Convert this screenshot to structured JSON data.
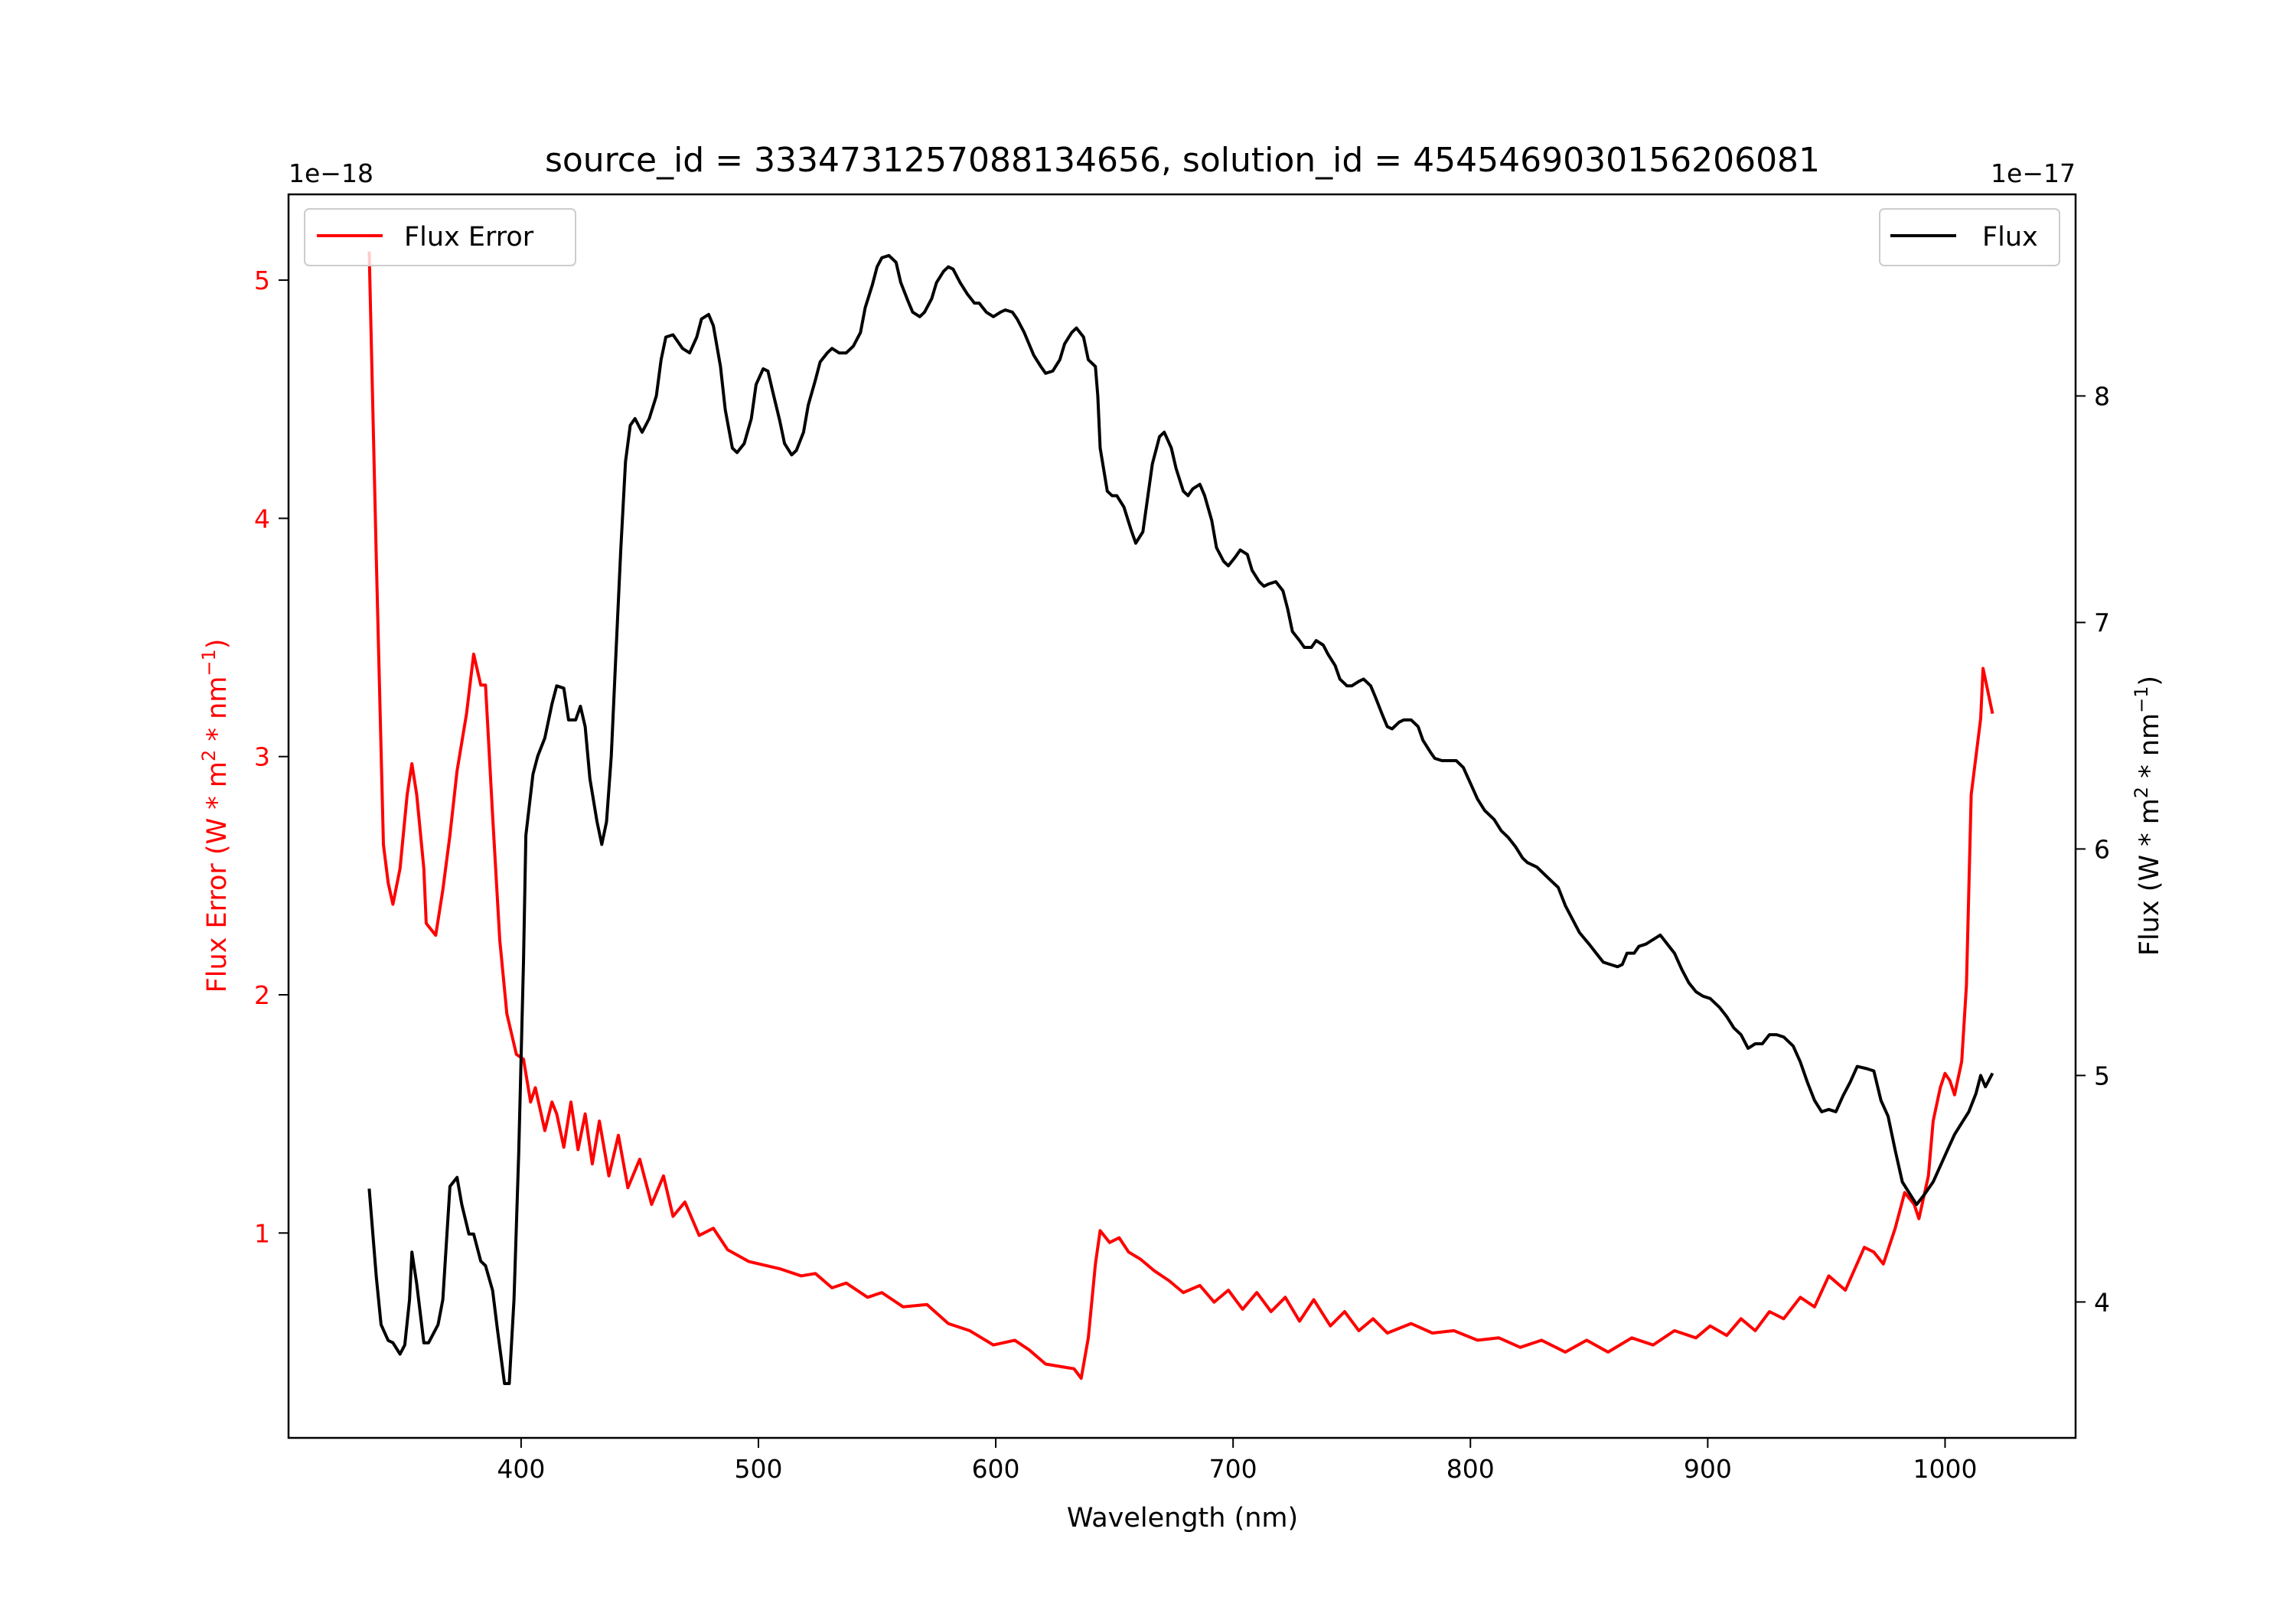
{
  "chart_data": {
    "type": "line",
    "title": "source_id = 3334731257088134656, solution_id = 4545469030156206081",
    "xlabel": "Wavelength (nm)",
    "xlim": [
      302,
      1055
    ],
    "xticks": [
      400,
      500,
      600,
      700,
      800,
      900,
      1000
    ],
    "left_axis": {
      "label": "Flux Error (W * m^2 * nm^-1)",
      "label_parts": [
        "Flux Error (W * m",
        "2",
        " * nm",
        "−1",
        ")"
      ],
      "offset_text": "1e−18",
      "ylim": [
        0.14,
        5.36
      ],
      "ticks": [
        1,
        2,
        3,
        4,
        5
      ],
      "color": "#ff0000"
    },
    "right_axis": {
      "label": "Flux (W * m^2 * nm^-1)",
      "label_parts": [
        "Flux (W * m",
        "2",
        " * nm",
        "−1",
        ")"
      ],
      "offset_text": "1e−17",
      "ylim": [
        3.4,
        8.89
      ],
      "ticks": [
        4,
        5,
        6,
        7,
        8
      ],
      "color": "#000000"
    },
    "series": [
      {
        "name": "Flux Error",
        "axis": "left",
        "color": "#ff0000",
        "legend": "top-left",
        "x": [
          336,
          339,
          341,
          342,
          344,
          346,
          349,
          352,
          354,
          356,
          359,
          360,
          364,
          367,
          370,
          373,
          377,
          380,
          383,
          385,
          388,
          391,
          394,
          398,
          401,
          404,
          406,
          410,
          413,
          415,
          418,
          421,
          424,
          427,
          430,
          433,
          437,
          441,
          445,
          450,
          455,
          460,
          464,
          469,
          475,
          481,
          487,
          496,
          509,
          518,
          524,
          531,
          537,
          546,
          552,
          561,
          571,
          580,
          589,
          599,
          608,
          614,
          621,
          633,
          636,
          639,
          642,
          644,
          648,
          652,
          656,
          661,
          667,
          673,
          679,
          686,
          692,
          698,
          704,
          710,
          716,
          722,
          728,
          734,
          741,
          747,
          753,
          759,
          765,
          775,
          784,
          793,
          803,
          812,
          821,
          830,
          840,
          849,
          858,
          868,
          877,
          886,
          895,
          901,
          908,
          914,
          920,
          926,
          932,
          939,
          945,
          951,
          958,
          966,
          970,
          974,
          979,
          983,
          987,
          989,
          993,
          995,
          998,
          1000,
          1002,
          1004,
          1007,
          1009,
          1011,
          1015,
          1016,
          1020
        ],
        "y": [
          5.12,
          3.83,
          3.03,
          2.63,
          2.47,
          2.38,
          2.53,
          2.84,
          2.97,
          2.84,
          2.53,
          2.3,
          2.25,
          2.44,
          2.67,
          2.94,
          3.18,
          3.43,
          3.3,
          3.3,
          2.75,
          2.23,
          1.92,
          1.75,
          1.73,
          1.55,
          1.61,
          1.43,
          1.55,
          1.5,
          1.36,
          1.55,
          1.35,
          1.5,
          1.29,
          1.47,
          1.24,
          1.41,
          1.19,
          1.31,
          1.12,
          1.24,
          1.07,
          1.13,
          0.99,
          1.02,
          0.93,
          0.88,
          0.85,
          0.82,
          0.83,
          0.77,
          0.79,
          0.73,
          0.75,
          0.69,
          0.7,
          0.62,
          0.59,
          0.53,
          0.55,
          0.51,
          0.45,
          0.43,
          0.39,
          0.56,
          0.87,
          1.01,
          0.96,
          0.98,
          0.92,
          0.89,
          0.84,
          0.8,
          0.75,
          0.78,
          0.71,
          0.76,
          0.68,
          0.75,
          0.67,
          0.73,
          0.63,
          0.72,
          0.61,
          0.67,
          0.59,
          0.64,
          0.58,
          0.62,
          0.58,
          0.59,
          0.55,
          0.56,
          0.52,
          0.55,
          0.5,
          0.55,
          0.5,
          0.56,
          0.53,
          0.59,
          0.56,
          0.61,
          0.57,
          0.64,
          0.59,
          0.67,
          0.64,
          0.73,
          0.69,
          0.82,
          0.76,
          0.94,
          0.92,
          0.87,
          1.02,
          1.17,
          1.12,
          1.06,
          1.24,
          1.47,
          1.61,
          1.67,
          1.64,
          1.58,
          1.72,
          2.04,
          2.84,
          3.16,
          3.37,
          3.18
        ]
      },
      {
        "name": "Flux",
        "axis": "right",
        "color": "#000000",
        "legend": "top-right",
        "x": [
          336,
          339,
          341,
          344,
          346,
          349,
          351,
          353,
          354,
          356,
          359,
          361,
          364,
          365,
          367,
          370,
          373,
          375,
          378,
          380,
          383,
          385,
          388,
          390,
          393,
          395,
          397,
          399,
          401,
          402,
          405,
          407,
          410,
          413,
          415,
          418,
          420,
          423,
          425,
          427,
          429,
          432,
          434,
          436,
          438,
          440,
          442,
          444,
          446,
          448,
          451,
          454,
          457,
          459,
          461,
          464,
          468,
          471,
          474,
          476,
          479,
          481,
          484,
          486,
          489,
          491,
          494,
          497,
          499,
          502,
          504,
          506,
          509,
          511,
          514,
          516,
          519,
          521,
          524,
          526,
          529,
          531,
          534,
          537,
          540,
          543,
          545,
          548,
          550,
          552,
          555,
          558,
          560,
          563,
          565,
          568,
          570,
          573,
          575,
          578,
          580,
          582,
          585,
          588,
          591,
          593,
          596,
          599,
          602,
          604,
          607,
          609,
          612,
          614,
          616,
          619,
          621,
          624,
          627,
          629,
          632,
          634,
          637,
          639,
          642,
          643,
          644,
          647,
          649,
          651,
          654,
          657,
          659,
          662,
          664,
          666,
          669,
          671,
          674,
          676,
          679,
          681,
          683,
          686,
          688,
          691,
          693,
          696,
          698,
          701,
          703,
          706,
          708,
          711,
          713,
          715,
          718,
          721,
          723,
          725,
          728,
          730,
          733,
          735,
          738,
          740,
          743,
          745,
          748,
          750,
          753,
          755,
          758,
          760,
          763,
          765,
          767,
          770,
          772,
          775,
          778,
          780,
          783,
          785,
          788,
          794,
          797,
          800,
          803,
          806,
          810,
          813,
          816,
          819,
          822,
          824,
          828,
          831,
          834,
          837,
          840,
          843,
          846,
          850,
          853,
          856,
          859,
          862,
          864,
          866,
          869,
          871,
          874,
          877,
          880,
          883,
          886,
          889,
          892,
          895,
          898,
          901,
          905,
          908,
          911,
          914,
          917,
          920,
          923,
          926,
          929,
          932,
          936,
          939,
          942,
          945,
          948,
          951,
          954,
          957,
          960,
          963,
          967,
          970,
          973,
          976,
          979,
          982,
          985,
          988,
          991,
          995,
          998,
          1001,
          1004,
          1007,
          1010,
          1013,
          1015,
          1017,
          1020
        ],
        "y": [
          4.5,
          4.11,
          3.9,
          3.83,
          3.82,
          3.77,
          3.81,
          4.01,
          4.22,
          4.08,
          3.82,
          3.82,
          3.88,
          3.9,
          4.01,
          4.51,
          4.55,
          4.43,
          4.3,
          4.3,
          4.18,
          4.16,
          4.05,
          3.88,
          3.64,
          3.64,
          4.01,
          4.66,
          5.5,
          6.06,
          6.33,
          6.41,
          6.49,
          6.64,
          6.72,
          6.71,
          6.57,
          6.57,
          6.63,
          6.54,
          6.31,
          6.12,
          6.02,
          6.12,
          6.41,
          6.87,
          7.32,
          7.71,
          7.87,
          7.9,
          7.84,
          7.9,
          8.0,
          8.16,
          8.26,
          8.27,
          8.21,
          8.19,
          8.26,
          8.34,
          8.36,
          8.31,
          8.13,
          7.94,
          7.77,
          7.75,
          7.79,
          7.9,
          8.05,
          8.12,
          8.11,
          8.02,
          7.89,
          7.79,
          7.74,
          7.76,
          7.84,
          7.96,
          8.07,
          8.15,
          8.19,
          8.21,
          8.19,
          8.19,
          8.22,
          8.28,
          8.39,
          8.49,
          8.57,
          8.61,
          8.62,
          8.59,
          8.5,
          8.42,
          8.37,
          8.35,
          8.37,
          8.43,
          8.5,
          8.55,
          8.57,
          8.56,
          8.5,
          8.45,
          8.41,
          8.41,
          8.37,
          8.35,
          8.37,
          8.38,
          8.37,
          8.34,
          8.28,
          8.23,
          8.18,
          8.13,
          8.1,
          8.11,
          8.16,
          8.23,
          8.28,
          8.3,
          8.26,
          8.16,
          8.13,
          8.0,
          7.77,
          7.58,
          7.56,
          7.56,
          7.51,
          7.41,
          7.35,
          7.4,
          7.55,
          7.7,
          7.82,
          7.84,
          7.77,
          7.68,
          7.58,
          7.56,
          7.59,
          7.61,
          7.56,
          7.45,
          7.33,
          7.27,
          7.25,
          7.29,
          7.32,
          7.3,
          7.23,
          7.18,
          7.16,
          7.17,
          7.18,
          7.14,
          7.06,
          6.96,
          6.92,
          6.89,
          6.89,
          6.92,
          6.9,
          6.86,
          6.81,
          6.75,
          6.72,
          6.72,
          6.74,
          6.75,
          6.72,
          6.67,
          6.59,
          6.54,
          6.53,
          6.56,
          6.57,
          6.57,
          6.54,
          6.48,
          6.43,
          6.4,
          6.39,
          6.39,
          6.36,
          6.29,
          6.22,
          6.17,
          6.13,
          6.08,
          6.05,
          6.01,
          5.96,
          5.94,
          5.92,
          5.89,
          5.86,
          5.83,
          5.75,
          5.69,
          5.63,
          5.58,
          5.54,
          5.5,
          5.49,
          5.48,
          5.49,
          5.54,
          5.54,
          5.57,
          5.58,
          5.6,
          5.62,
          5.58,
          5.54,
          5.47,
          5.41,
          5.37,
          5.35,
          5.34,
          5.3,
          5.26,
          5.21,
          5.18,
          5.12,
          5.14,
          5.14,
          5.18,
          5.18,
          5.17,
          5.13,
          5.06,
          4.97,
          4.89,
          4.84,
          4.85,
          4.84,
          4.91,
          4.97,
          5.04,
          5.03,
          5.02,
          4.89,
          4.82,
          4.67,
          4.53,
          4.48,
          4.43,
          4.47,
          4.53,
          4.6,
          4.67,
          4.74,
          4.79,
          4.84,
          4.92,
          5.0,
          4.95,
          5.01
        ]
      }
    ]
  }
}
